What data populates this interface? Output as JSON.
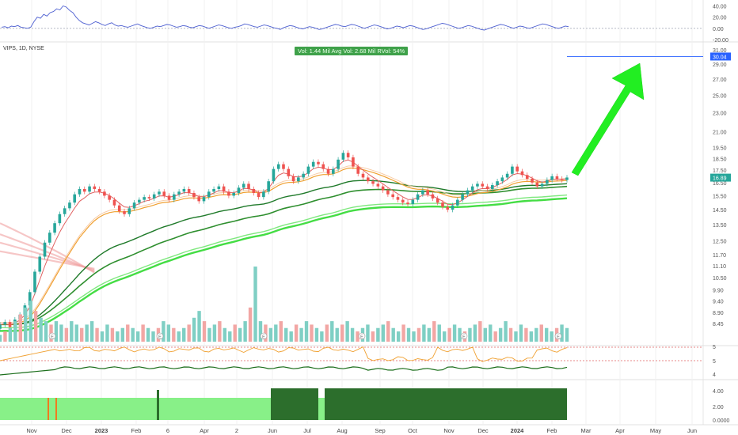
{
  "symbol_label": "VIPS, 1D, NYSE",
  "volume_badge": "Vol: 1.44 Mil   Avg Vol: 2.68 Mil   RVol: 54%",
  "colors": {
    "up": "#26a69a",
    "down": "#ef5350",
    "ema_fast": "#e06060",
    "ema_mid": "#f0a030",
    "ema_slow": "#2f8f2f",
    "ema_bright": "#44dd44",
    "arrow": "#22ee22",
    "price_tag": "#2962ff",
    "last_tag": "#26a69a",
    "rsi_line": "#4d5fd1",
    "osc_orange": "#f0a030",
    "osc_green": "#1b6e1b",
    "band_light": "#88f088",
    "band_dark": "#2c6e2c"
  },
  "chart_data": [
    {
      "type": "line",
      "panel": "oscillator-top",
      "y_ticks": [
        "40.00",
        "20.00",
        "0.00",
        "-20.00"
      ],
      "ylim": [
        -20,
        45
      ],
      "values": [
        2,
        3,
        1,
        4,
        3,
        5,
        2,
        1,
        0,
        2,
        12,
        20,
        18,
        25,
        22,
        28,
        30,
        35,
        33,
        40,
        38,
        32,
        28,
        20,
        14,
        10,
        8,
        6,
        9,
        12,
        10,
        7,
        5,
        8,
        10,
        6,
        4,
        5,
        3,
        2,
        4,
        6,
        8,
        5,
        3,
        1,
        0,
        2,
        4,
        3,
        5,
        7,
        6,
        4,
        2,
        3,
        5,
        4,
        2,
        1,
        3,
        5,
        4,
        2,
        0,
        2,
        4,
        6,
        5,
        3,
        1,
        0,
        2,
        3,
        5,
        8,
        7,
        5,
        3,
        2,
        4,
        6,
        5,
        3,
        1,
        0,
        -2,
        1,
        3,
        5,
        4,
        2,
        0,
        -1,
        1,
        3,
        2,
        0,
        -2,
        -1,
        1,
        3,
        5,
        7,
        6,
        4,
        3,
        5,
        7,
        6,
        4,
        2,
        0,
        2,
        4,
        6,
        5,
        3,
        1,
        -1,
        0,
        2,
        4,
        3,
        1,
        3,
        5,
        4,
        2,
        0,
        -2,
        -1,
        1,
        3,
        5,
        7,
        9,
        8,
        6,
        4,
        2,
        0,
        1,
        3,
        5,
        4,
        2,
        0,
        -2,
        -3,
        -1,
        1,
        3,
        5,
        7,
        6,
        4,
        2,
        0,
        2,
        4,
        3,
        1,
        0,
        2,
        4,
        6,
        8,
        7,
        5,
        3,
        1,
        0,
        2,
        4,
        3
      ]
    },
    {
      "type": "candlestick",
      "panel": "price",
      "y_ticks": [
        "31.00",
        "29.00",
        "27.00",
        "25.00",
        "23.00",
        "21.00",
        "19.50",
        "18.50",
        "17.50",
        "16.50",
        "15.50",
        "14.50",
        "13.50",
        "12.50",
        "11.70",
        "11.10",
        "10.50",
        "9.90",
        "9.40",
        "8.90",
        "8.45"
      ],
      "current_price": "30.04",
      "last_price": "16.89",
      "x_ticks": [
        "Nov",
        "Dec",
        "2023",
        "Feb",
        "6",
        "Apr",
        "2",
        "Jun",
        "Jul",
        "Aug",
        "Sep",
        "Oct",
        "Nov",
        "Dec",
        "2024",
        "Feb",
        "Mar",
        "Apr",
        "May",
        "Jun"
      ],
      "close_path": [
        8.4,
        8.5,
        8.3,
        8.6,
        8.8,
        9.2,
        9.8,
        10.8,
        11.6,
        12.4,
        13.0,
        13.6,
        14.2,
        14.6,
        15.0,
        15.6,
        16.0,
        15.8,
        16.2,
        16.0,
        15.8,
        15.5,
        15.2,
        14.8,
        14.4,
        14.2,
        14.6,
        15.0,
        15.2,
        15.4,
        15.3,
        15.6,
        15.8,
        15.5,
        15.2,
        15.6,
        15.8,
        16.0,
        15.7,
        15.4,
        15.1,
        15.4,
        15.8,
        16.0,
        16.2,
        15.8,
        15.5,
        15.7,
        16.1,
        16.4,
        16.0,
        15.7,
        15.4,
        15.8,
        16.6,
        17.6,
        18.0,
        17.6,
        17.0,
        16.6,
        16.9,
        17.2,
        17.8,
        18.2,
        18.0,
        17.6,
        17.2,
        17.6,
        18.4,
        19.0,
        18.6,
        17.8,
        17.2,
        16.9,
        16.6,
        16.4,
        16.2,
        15.9,
        15.6,
        15.4,
        15.2,
        15.0,
        14.9,
        15.2,
        15.6,
        15.9,
        15.6,
        15.3,
        15.0,
        14.7,
        14.5,
        14.8,
        15.2,
        15.6,
        15.9,
        16.2,
        16.4,
        16.2,
        16.0,
        16.3,
        16.6,
        16.9,
        17.2,
        17.8,
        17.4,
        17.1,
        16.8,
        16.5,
        16.2,
        16.4,
        16.7,
        17.0,
        16.8,
        16.7,
        16.9
      ]
    },
    {
      "type": "bar",
      "panel": "volume",
      "values": [
        2,
        3,
        4,
        6,
        8,
        10,
        12,
        9,
        7,
        6,
        5,
        6,
        5,
        4,
        6,
        5,
        4,
        5,
        6,
        4,
        3,
        5,
        4,
        3,
        4,
        5,
        4,
        3,
        5,
        4,
        3,
        4,
        6,
        5,
        4,
        3,
        4,
        5,
        7,
        9,
        6,
        4,
        5,
        6,
        4,
        3,
        5,
        4,
        6,
        10,
        22,
        6,
        5,
        4,
        5,
        6,
        4,
        3,
        5,
        4,
        6,
        5,
        4,
        3,
        5,
        6,
        4,
        5,
        6,
        4,
        3,
        4,
        5,
        3,
        4,
        5,
        6,
        4,
        3,
        5,
        4,
        3,
        4,
        5,
        4,
        6,
        5,
        3,
        4,
        5,
        4,
        3,
        4,
        5,
        6,
        4,
        5,
        3,
        4,
        6,
        4,
        3,
        5,
        4,
        3,
        4,
        5,
        4,
        3,
        4,
        5,
        4
      ]
    },
    {
      "type": "line",
      "panel": "oscillator-mid",
      "y_ticks": [
        "5",
        "5",
        "4"
      ]
    },
    {
      "type": "area",
      "panel": "oscillator-bottom",
      "y_ticks": [
        "4.00",
        "2.00",
        "0.0000"
      ]
    }
  ]
}
